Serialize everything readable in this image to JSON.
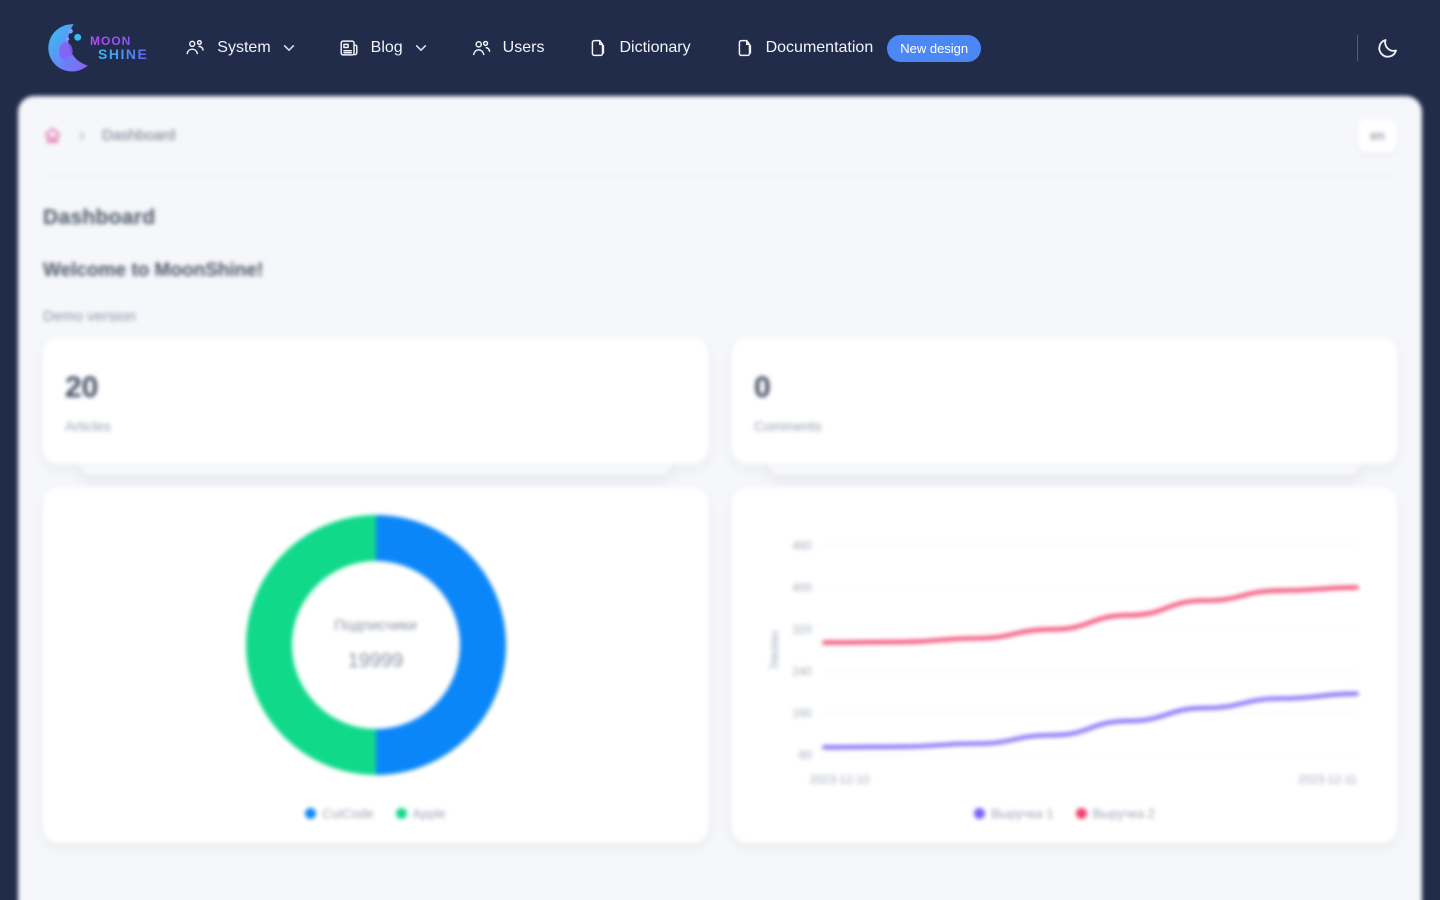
{
  "nav": {
    "brand": {
      "line1": "MOON",
      "line2": "SHINE"
    },
    "items": [
      {
        "label": "System",
        "icon": "users-group-icon",
        "has_dropdown": true
      },
      {
        "label": "Blog",
        "icon": "newspaper-icon",
        "has_dropdown": true
      },
      {
        "label": "Users",
        "icon": "users-icon",
        "has_dropdown": false
      },
      {
        "label": "Dictionary",
        "icon": "documents-icon",
        "has_dropdown": false
      },
      {
        "label": "Documentation",
        "icon": "document-icon",
        "has_dropdown": false
      }
    ],
    "documentation_badge": "New design",
    "badge_color": "#4b87f5"
  },
  "breadcrumb": {
    "home_icon": "home-icon",
    "current": "Dashboard"
  },
  "locale_button": "en",
  "page": {
    "title": "Dashboard",
    "welcome": "Welcome to MoonShine!",
    "subtitle": "Demo version"
  },
  "stats": [
    {
      "value": "20",
      "label": "Articles"
    },
    {
      "value": "0",
      "label": "Comments"
    }
  ],
  "chart_data": [
    {
      "type": "pie",
      "subtype": "donut",
      "center_label": "Подписчики",
      "center_value": "19999",
      "labels": [
        "CutCode",
        "Apple"
      ],
      "values": [
        10000,
        9999
      ],
      "colors": [
        "#0b86f8",
        "#10d98a"
      ],
      "legend_position": "bottom"
    },
    {
      "type": "line",
      "ylabel": "Заказы",
      "x_axis_labels": [
        "2023-12-10",
        "2023-12-11"
      ],
      "yticks": [
        480,
        400,
        320,
        240,
        160,
        80
      ],
      "ylim": [
        80,
        480
      ],
      "grid": "horizontal-dotted",
      "legend_position": "bottom",
      "series": [
        {
          "name": "Выручка 1",
          "color": "#7b5cf6",
          "values": [
            95,
            96,
            102,
            118,
            145,
            170,
            188,
            197
          ]
        },
        {
          "name": "Выручка 2",
          "color": "#f23c68",
          "values": [
            295,
            296,
            303,
            320,
            347,
            375,
            394,
            400
          ]
        }
      ]
    }
  ]
}
